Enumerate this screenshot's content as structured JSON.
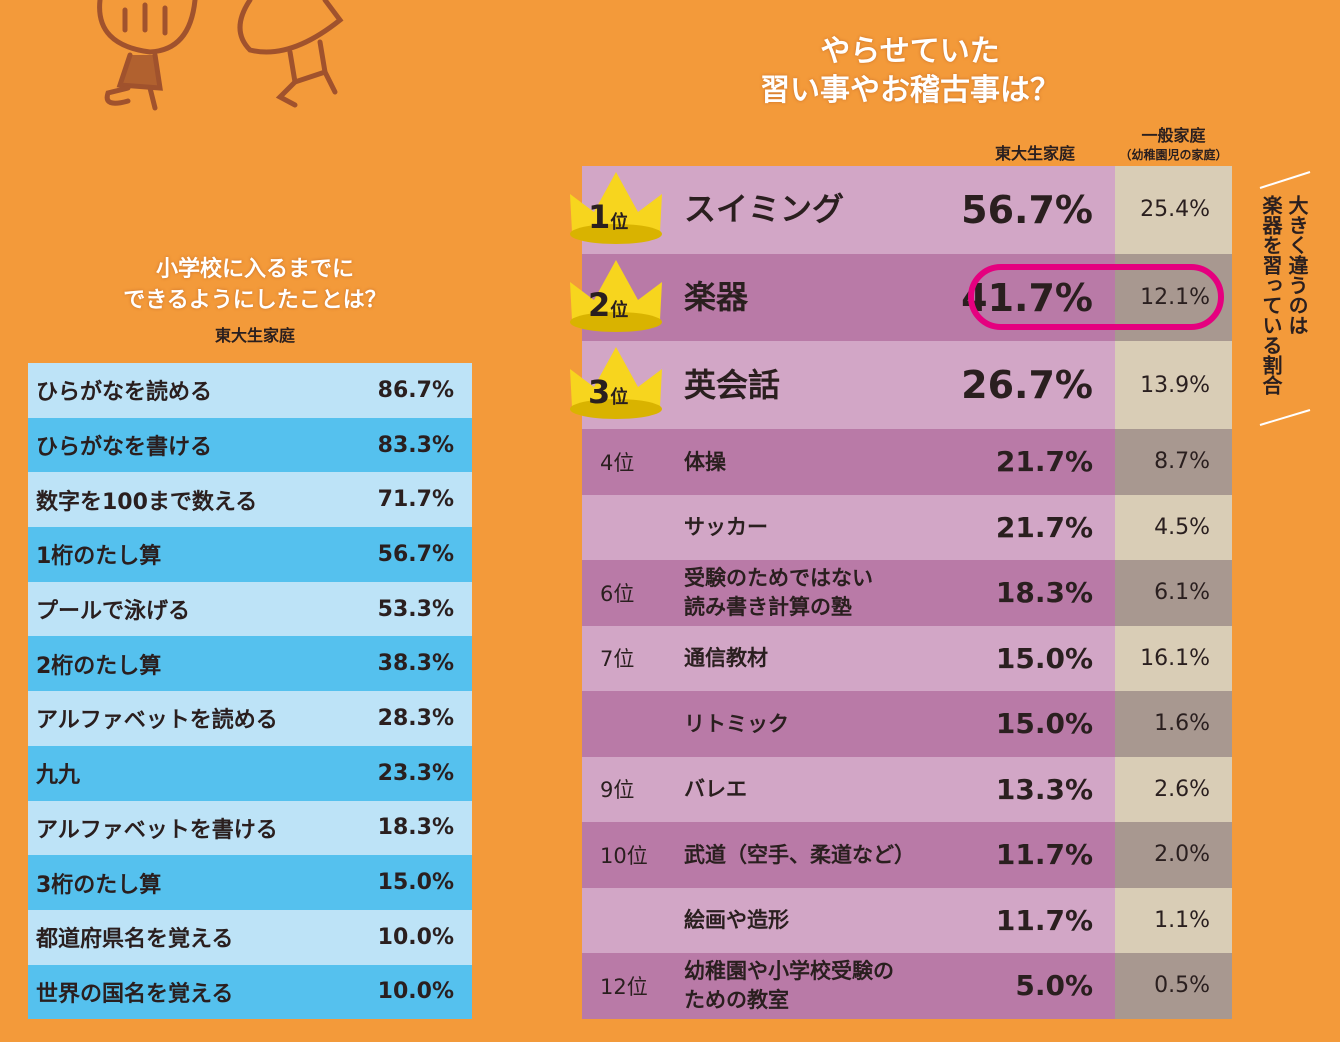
{
  "left": {
    "title_line1": "小学校に入るまでに",
    "title_line2": "できるようにしたことは？",
    "subtitle": "東大生家庭"
  },
  "right": {
    "title_line1": "やらせていた",
    "title_line2": "習い事やお稽古事は？",
    "col_todai": "東大生家庭",
    "col_general": "一般家庭",
    "col_general_sub": "（幼稚園児の家庭）",
    "side_note_line1": "大きく違うのは",
    "side_note_line2": "楽器を習っている割合"
  },
  "colors": {
    "background": "#F39A3A",
    "left_light": "#BDE3F7",
    "left_dark": "#55C1EE",
    "right_light": "#D2A6C6",
    "right_dark": "#B97AA7",
    "general_light": "#D9CDB6",
    "general_dark": "#A89890",
    "highlight": "#E5007F",
    "crown": "#F7D51E"
  },
  "chart_data": [
    {
      "type": "table",
      "title": "小学校に入るまでにできるようにしたことは？",
      "subtitle": "東大生家庭",
      "rows": [
        {
          "label": "ひらがなを読める",
          "value": "86.7%"
        },
        {
          "label": "ひらがなを書ける",
          "value": "83.3%"
        },
        {
          "label": "数字を100まで数える",
          "value": "71.7%"
        },
        {
          "label": "1桁のたし算",
          "value": "56.7%"
        },
        {
          "label": "プールで泳げる",
          "value": "53.3%"
        },
        {
          "label": "2桁のたし算",
          "value": "38.3%"
        },
        {
          "label": "アルファベットを読める",
          "value": "28.3%"
        },
        {
          "label": "九九",
          "value": "23.3%"
        },
        {
          "label": "アルファベットを書ける",
          "value": "18.3%"
        },
        {
          "label": "3桁のたし算",
          "value": "15.0%"
        },
        {
          "label": "都道府県名を覚える",
          "value": "10.0%"
        },
        {
          "label": "世界の国名を覚える",
          "value": "10.0%"
        }
      ]
    },
    {
      "type": "table",
      "title": "やらせていた習い事やお稽古事は？",
      "columns": [
        "東大生家庭",
        "一般家庭（幼稚園児の家庭）"
      ],
      "rows": [
        {
          "rank": "1",
          "rank_suffix": "位",
          "label": "スイミング",
          "todai": "56.7%",
          "general": "25.4%"
        },
        {
          "rank": "2",
          "rank_suffix": "位",
          "label": "楽器",
          "todai": "41.7%",
          "general": "12.1%",
          "highlighted": true
        },
        {
          "rank": "3",
          "rank_suffix": "位",
          "label": "英会話",
          "todai": "26.7%",
          "general": "13.9%"
        },
        {
          "rank": "4位",
          "label": "体操",
          "todai": "21.7%",
          "general": "8.7%"
        },
        {
          "rank": "",
          "label": "サッカー",
          "todai": "21.7%",
          "general": "4.5%"
        },
        {
          "rank": "6位",
          "label": "受験のためではない\n読み書き計算の塾",
          "todai": "18.3%",
          "general": "6.1%"
        },
        {
          "rank": "7位",
          "label": "通信教材",
          "todai": "15.0%",
          "general": "16.1%"
        },
        {
          "rank": "",
          "label": "リトミック",
          "todai": "15.0%",
          "general": "1.6%"
        },
        {
          "rank": "9位",
          "label": "バレエ",
          "todai": "13.3%",
          "general": "2.6%"
        },
        {
          "rank": "10位",
          "label": "武道（空手、柔道など）",
          "todai": "11.7%",
          "general": "2.0%"
        },
        {
          "rank": "",
          "label": "絵画や造形",
          "todai": "11.7%",
          "general": "1.1%"
        },
        {
          "rank": "12位",
          "label": "幼稚園や小学校受験の\nための教室",
          "todai": "5.0%",
          "general": "0.5%"
        }
      ]
    }
  ]
}
